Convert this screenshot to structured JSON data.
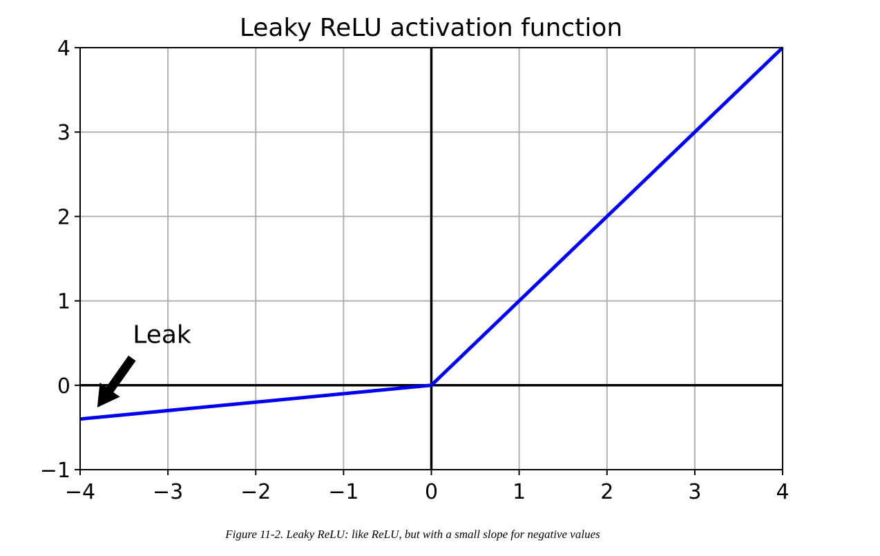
{
  "chart_data": {
    "type": "line",
    "title": "Leaky ReLU activation function",
    "xlabel": "",
    "ylabel": "",
    "xlim": [
      -4,
      4
    ],
    "ylim": [
      -1,
      4
    ],
    "xticks": [
      -4,
      -3,
      -2,
      -1,
      0,
      1,
      2,
      3,
      4
    ],
    "yticks": [
      -1,
      0,
      1,
      2,
      3,
      4
    ],
    "xtick_labels": [
      "−4",
      "−3",
      "−2",
      "−1",
      "0",
      "1",
      "2",
      "3",
      "4"
    ],
    "ytick_labels": [
      "−1",
      "0",
      "1",
      "2",
      "3",
      "4"
    ],
    "grid": true,
    "series": [
      {
        "color": "#0000ee",
        "x": [
          -4,
          0,
          4
        ],
        "y": [
          -0.4,
          0,
          4
        ]
      }
    ],
    "axis_lines": {
      "x_zero": true,
      "y_zero": true,
      "color": "#000000"
    },
    "annotations": [
      {
        "text": "Leak",
        "xytext": [
          -3.4,
          0.5
        ],
        "xy": [
          -3.8,
          -0.24
        ],
        "arrow_color": "#000000"
      }
    ]
  },
  "caption": "Figure 11-2. Leaky ReLU: like ReLU, but with a small slope for negative values"
}
